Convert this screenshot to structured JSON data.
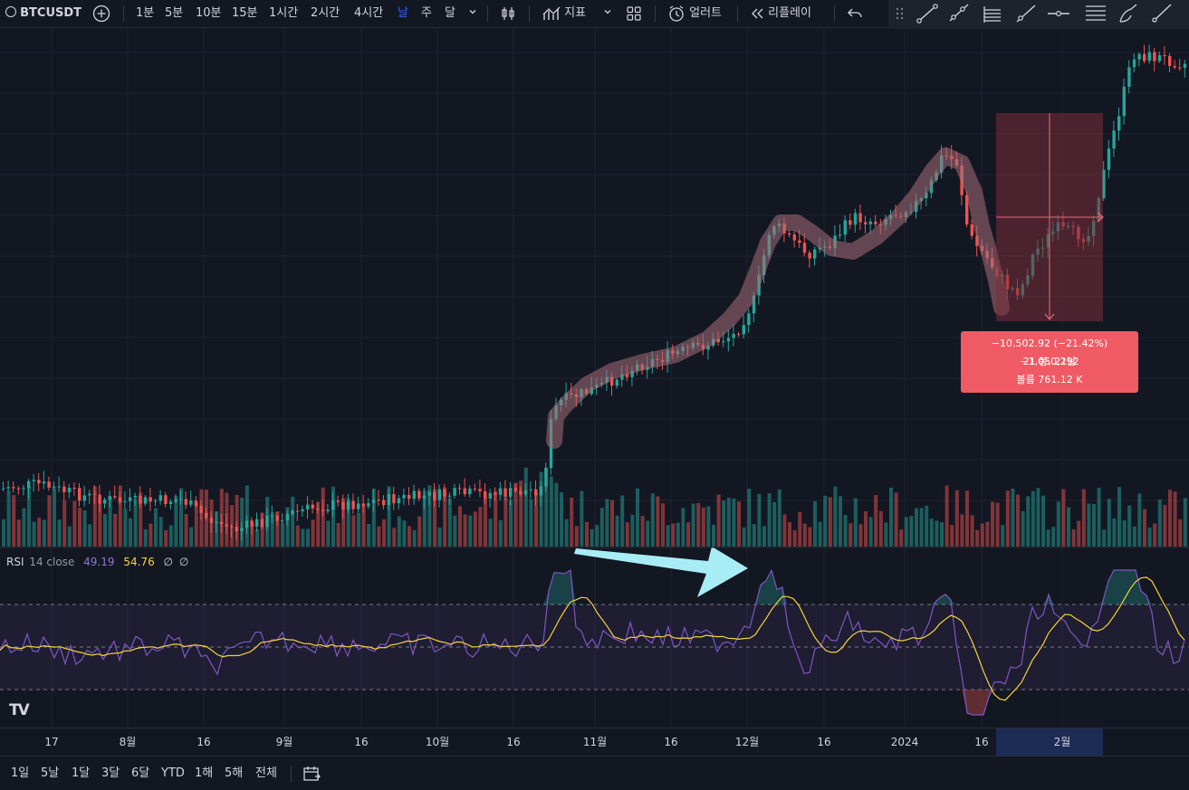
{
  "toolbar": {
    "symbol": "BTCUSDT",
    "intervals": [
      "1분",
      "5분",
      "10분",
      "15분",
      "1시간",
      "2시간",
      "4시간",
      "날",
      "주",
      "달"
    ],
    "active_interval": "날",
    "indicators_label": "지표",
    "alert_label": "얼러트",
    "replay_label": "리플레이"
  },
  "rsi": {
    "label": "RSI",
    "params": "14 close",
    "value1": "49.19",
    "value2": "54.76",
    "value3": "∅",
    "value4": "∅"
  },
  "measure": {
    "line1": "−10,502.92 (−21.42%) −1,050,292",
    "line2": "21 봉, 21날",
    "line3": "볼륨 761.12 K"
  },
  "time_axis": {
    "ticks": [
      "17",
      "8월",
      "16",
      "9월",
      "16",
      "10월",
      "16",
      "11월",
      "16",
      "12월",
      "16",
      "2024",
      "16",
      "2월"
    ]
  },
  "range_buttons": [
    "1일",
    "5날",
    "1달",
    "3달",
    "6달",
    "YTD",
    "1해",
    "5해",
    "전체"
  ],
  "logo_text": "TV",
  "colors": {
    "background": "#131722",
    "up": "#26a69a",
    "down": "#ef5350",
    "rsi_line": "#7e57c2",
    "rsi_ma": "#f7d23b",
    "highlight_path": "#a56d78",
    "arrow": "#a8edf5",
    "active_interval": "#2962ff"
  },
  "icons": [
    "search-icon",
    "add-symbol-icon",
    "chevron-down-icon",
    "candle-type-icon",
    "indicators-icon",
    "layout-grid-icon",
    "alert-clock-icon",
    "replay-icon",
    "undo-icon",
    "trendline-icon",
    "ray-icon",
    "parallel-channel-icon",
    "extended-line-icon",
    "horizontal-ray-icon",
    "pitchfork-icon",
    "brush-icon",
    "pen-icon",
    "date-range-icon"
  ]
}
